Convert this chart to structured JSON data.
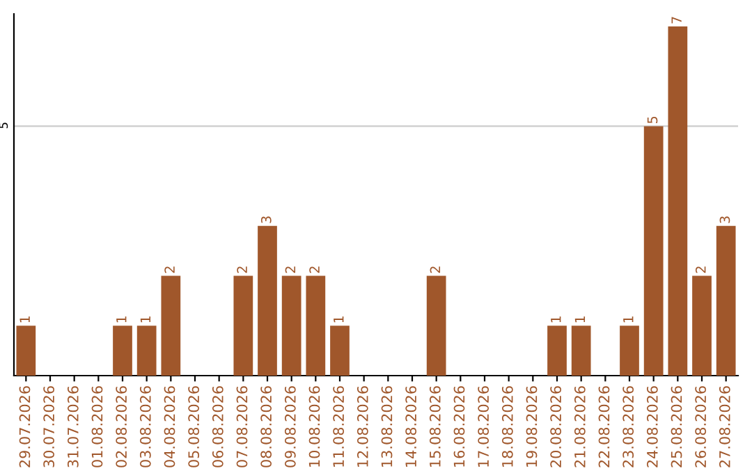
{
  "chart_data": {
    "type": "bar",
    "categories": [
      "29.07.2026",
      "30.07.2026",
      "31.07.2026",
      "01.08.2026",
      "02.08.2026",
      "03.08.2026",
      "04.08.2026",
      "05.08.2026",
      "06.08.2026",
      "07.08.2026",
      "08.08.2026",
      "09.08.2026",
      "10.08.2026",
      "11.08.2026",
      "12.08.2026",
      "13.08.2026",
      "14.08.2026",
      "15.08.2026",
      "16.08.2026",
      "17.08.2026",
      "18.08.2026",
      "19.08.2026",
      "20.08.2026",
      "21.08.2026",
      "22.08.2026",
      "23.08.2026",
      "24.08.2026",
      "25.08.2026",
      "26.08.2026",
      "27.08.2026"
    ],
    "values": [
      1,
      0,
      0,
      0,
      1,
      1,
      2,
      0,
      0,
      2,
      3,
      2,
      2,
      1,
      0,
      0,
      0,
      2,
      0,
      0,
      0,
      0,
      1,
      1,
      0,
      1,
      5,
      7,
      2,
      3
    ],
    "value_labels": [
      "1",
      null,
      null,
      null,
      "1",
      "1",
      "2",
      null,
      null,
      "2",
      "3",
      "2",
      "2",
      "1",
      null,
      null,
      null,
      "2",
      null,
      null,
      null,
      null,
      "1",
      "1",
      null,
      "1",
      "5",
      "7",
      "2",
      "3"
    ],
    "color": "#a0572b",
    "ylim": [
      0,
      7.25
    ],
    "yticks": [
      5
    ],
    "grid": "y",
    "legend": false
  }
}
